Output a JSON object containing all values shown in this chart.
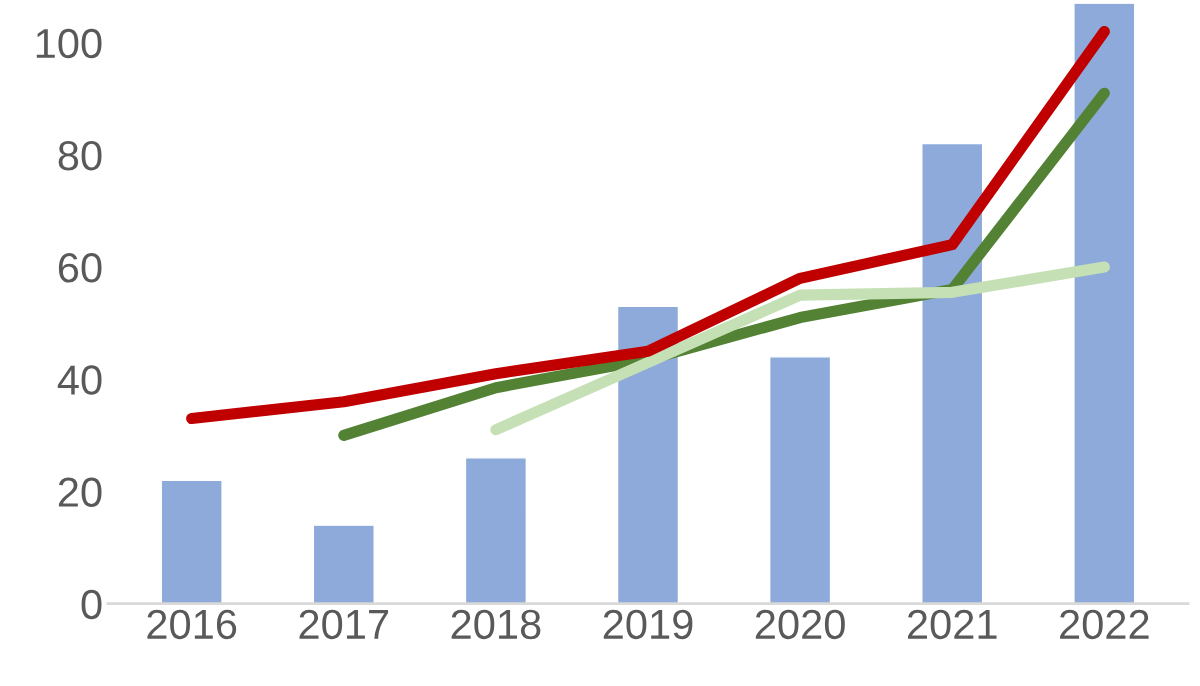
{
  "chart_data": {
    "type": "bar",
    "categories": [
      "2016",
      "2017",
      "2018",
      "2019",
      "2020",
      "2021",
      "2022"
    ],
    "series": [
      {
        "color": "#8eaadb",
        "values": [
          22,
          14,
          26,
          53,
          44,
          82,
          107
        ]
      },
      {
        "type": "line",
        "color": "#548235",
        "values": [
          null,
          30,
          38.5,
          43.5,
          51,
          56,
          91
        ]
      },
      {
        "type": "line",
        "color": "#c5e0b4",
        "values": [
          null,
          null,
          31,
          43,
          55,
          55.5,
          60
        ]
      },
      {
        "type": "line",
        "color": "#c00000",
        "values": [
          33,
          36,
          41,
          45,
          58,
          64,
          102
        ]
      }
    ],
    "ylim": [
      0,
      107
    ],
    "yticks": [
      0,
      20,
      40,
      60,
      80,
      100
    ],
    "grid": false,
    "legend": false
  }
}
